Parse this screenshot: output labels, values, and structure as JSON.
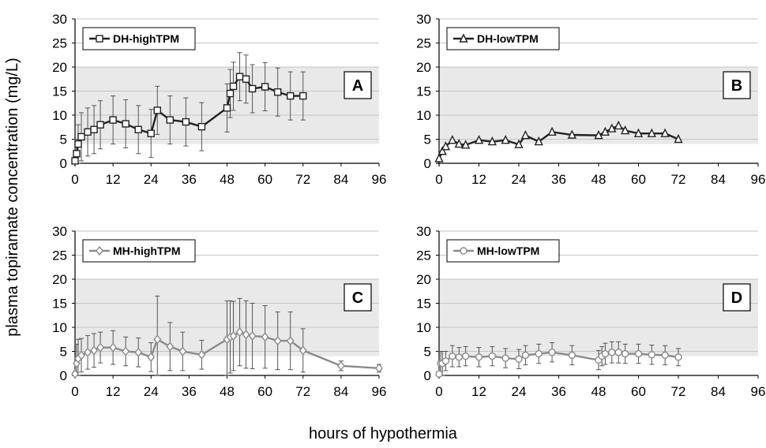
{
  "figure": {
    "ylabel": "plasma topiramate concentration (mg/L)",
    "xlabel": "hours of hypothermia"
  },
  "chart_data": [
    {
      "type": "line",
      "panel": "A",
      "legend": "DH-highTPM",
      "marker": "square",
      "line_color": "#222222",
      "band_color": "#e9e9e9",
      "band": [
        4,
        20
      ],
      "xlim": [
        0,
        96
      ],
      "ylim": [
        0,
        30
      ],
      "xticks": [
        0,
        12,
        24,
        36,
        48,
        60,
        72,
        84,
        96
      ],
      "yticks": [
        0,
        5,
        10,
        15,
        20,
        25,
        30
      ],
      "x": [
        0,
        0.5,
        1,
        2,
        4,
        6,
        8,
        12,
        16,
        20,
        24,
        26,
        30,
        35,
        40,
        48,
        49,
        50,
        52,
        54,
        56,
        60,
        64,
        68,
        72
      ],
      "y": [
        0.5,
        2,
        4,
        5.5,
        6.5,
        7,
        8,
        9,
        8.2,
        7,
        6.2,
        11,
        9,
        8.6,
        7.6,
        11.5,
        14.5,
        16,
        18,
        17.5,
        15.5,
        15.9,
        14.8,
        14,
        14
      ],
      "err": [
        1,
        3,
        4,
        5,
        5,
        5,
        5,
        5,
        5,
        5,
        5,
        5,
        5,
        5,
        5,
        5,
        5,
        5,
        5,
        5,
        5,
        5,
        5,
        5,
        5
      ]
    },
    {
      "type": "line",
      "panel": "B",
      "legend": "DH-lowTPM",
      "marker": "triangle",
      "line_color": "#222222",
      "band_color": "#e9e9e9",
      "band": [
        4,
        20
      ],
      "xlim": [
        0,
        96
      ],
      "ylim": [
        0,
        30
      ],
      "xticks": [
        0,
        12,
        24,
        36,
        48,
        60,
        72,
        84,
        96
      ],
      "yticks": [
        0,
        5,
        10,
        15,
        20,
        25,
        30
      ],
      "x": [
        0,
        1,
        2,
        4,
        6,
        8,
        12,
        16,
        20,
        24,
        26,
        30,
        34,
        40,
        48,
        50,
        52,
        54,
        56,
        60,
        64,
        68,
        72
      ],
      "y": [
        1,
        2.5,
        3.5,
        4.8,
        4,
        3.8,
        4.8,
        4.5,
        4.8,
        3.9,
        5.8,
        4.5,
        6.5,
        5.9,
        5.8,
        6.5,
        7.2,
        7.8,
        6.8,
        6.2,
        6.2,
        6.2,
        5
      ],
      "err": []
    },
    {
      "type": "line",
      "panel": "C",
      "legend": "MH-highTPM",
      "marker": "diamond",
      "line_color": "#8a8a8a",
      "band_color": "#e9e9e9",
      "band": [
        4,
        20
      ],
      "xlim": [
        0,
        96
      ],
      "ylim": [
        0,
        30
      ],
      "xticks": [
        0,
        12,
        24,
        36,
        48,
        60,
        72,
        84,
        96
      ],
      "yticks": [
        0,
        5,
        10,
        15,
        20,
        25,
        30
      ],
      "x": [
        0,
        0.5,
        1,
        2,
        4,
        6,
        8,
        12,
        16,
        20,
        24,
        26,
        30,
        34,
        40,
        48,
        49,
        50,
        52,
        54,
        56,
        60,
        64,
        68,
        72,
        84,
        96
      ],
      "y": [
        0.3,
        2.5,
        3.5,
        4.2,
        4.8,
        5.2,
        5.8,
        5.8,
        5,
        4.8,
        3.8,
        7.5,
        6,
        5,
        4.3,
        7.5,
        8,
        8.2,
        9,
        8.5,
        8.2,
        8,
        7.2,
        7.2,
        5.2,
        2,
        1.5
      ],
      "err": [
        0.5,
        4,
        4,
        3.5,
        3.5,
        3.5,
        3.2,
        3.5,
        3,
        3,
        3,
        9,
        5,
        4,
        3,
        8,
        7.5,
        7.2,
        7,
        7,
        6.8,
        6.5,
        6,
        6,
        4.5,
        1,
        0.8
      ]
    },
    {
      "type": "line",
      "panel": "D",
      "legend": "MH-lowTPM",
      "marker": "circle",
      "line_color": "#8a8a8a",
      "band_color": "#e9e9e9",
      "band": [
        4,
        20
      ],
      "xlim": [
        0,
        96
      ],
      "ylim": [
        0,
        30
      ],
      "xticks": [
        0,
        12,
        24,
        36,
        48,
        60,
        72,
        84,
        96
      ],
      "yticks": [
        0,
        5,
        10,
        15,
        20,
        25,
        30
      ],
      "x": [
        0,
        0.5,
        1,
        2,
        4,
        6,
        8,
        12,
        16,
        20,
        24,
        26,
        30,
        34,
        40,
        48,
        49,
        50,
        52,
        54,
        56,
        60,
        64,
        68,
        72
      ],
      "y": [
        0.3,
        2.5,
        2.5,
        3,
        4,
        3.8,
        4,
        3.8,
        4,
        3.6,
        3.4,
        4.2,
        4.5,
        4.8,
        4.2,
        3.2,
        4,
        4.5,
        4.8,
        4.8,
        4.5,
        4.5,
        4.3,
        4.2,
        3.8
      ],
      "err": [
        0.5,
        2.5,
        2.5,
        2,
        2.2,
        2,
        2,
        2,
        2,
        2,
        2,
        2,
        2,
        2,
        2,
        2,
        2,
        2.2,
        2.2,
        2.2,
        2,
        2,
        2,
        2,
        1.8
      ]
    }
  ]
}
